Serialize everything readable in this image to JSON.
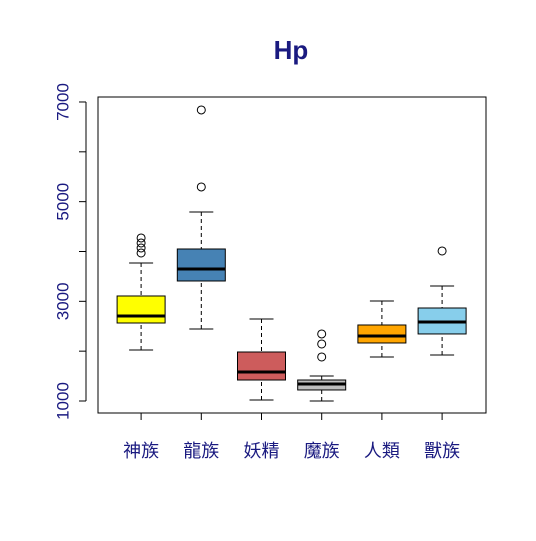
{
  "chart_data": {
    "type": "boxplot",
    "title": "Hp",
    "categories": [
      "神族",
      "龍族",
      "妖精",
      "魔族",
      "人類",
      "獸族"
    ],
    "boxes": [
      {
        "color": "#ffff00",
        "whislo": 2023,
        "q1": 2565,
        "median": 2706,
        "q3": 3107,
        "whishi": 3769,
        "outliers": [
          4271,
          4171,
          4070,
          3970
        ]
      },
      {
        "color": "#4682b4",
        "whislo": 2445,
        "q1": 3408,
        "median": 3649,
        "q3": 4050,
        "whishi": 4793,
        "outliers": [
          6840,
          5295
        ]
      },
      {
        "color": "#cd5c5c",
        "whislo": 1020,
        "q1": 1421,
        "median": 1582,
        "q3": 1983,
        "whishi": 2646,
        "outliers": []
      },
      {
        "color": "#bebebe",
        "whislo": 1000,
        "q1": 1221,
        "median": 1341,
        "q3": 1421,
        "whishi": 1502,
        "outliers": [
          2345,
          2144,
          1883
        ]
      },
      {
        "color": "#ffa500",
        "whislo": 1883,
        "q1": 2164,
        "median": 2304,
        "q3": 2525,
        "whishi": 3007,
        "outliers": []
      },
      {
        "color": "#87ceeb",
        "whislo": 1923,
        "q1": 2345,
        "median": 2585,
        "q3": 2866,
        "whishi": 3308,
        "outliers": [
          4010
        ]
      }
    ],
    "ylim": [
      759,
      7100
    ],
    "yticks": [
      1000,
      3000,
      5000,
      7000
    ],
    "yminor_ticks": [
      2000,
      4000,
      6000
    ]
  }
}
